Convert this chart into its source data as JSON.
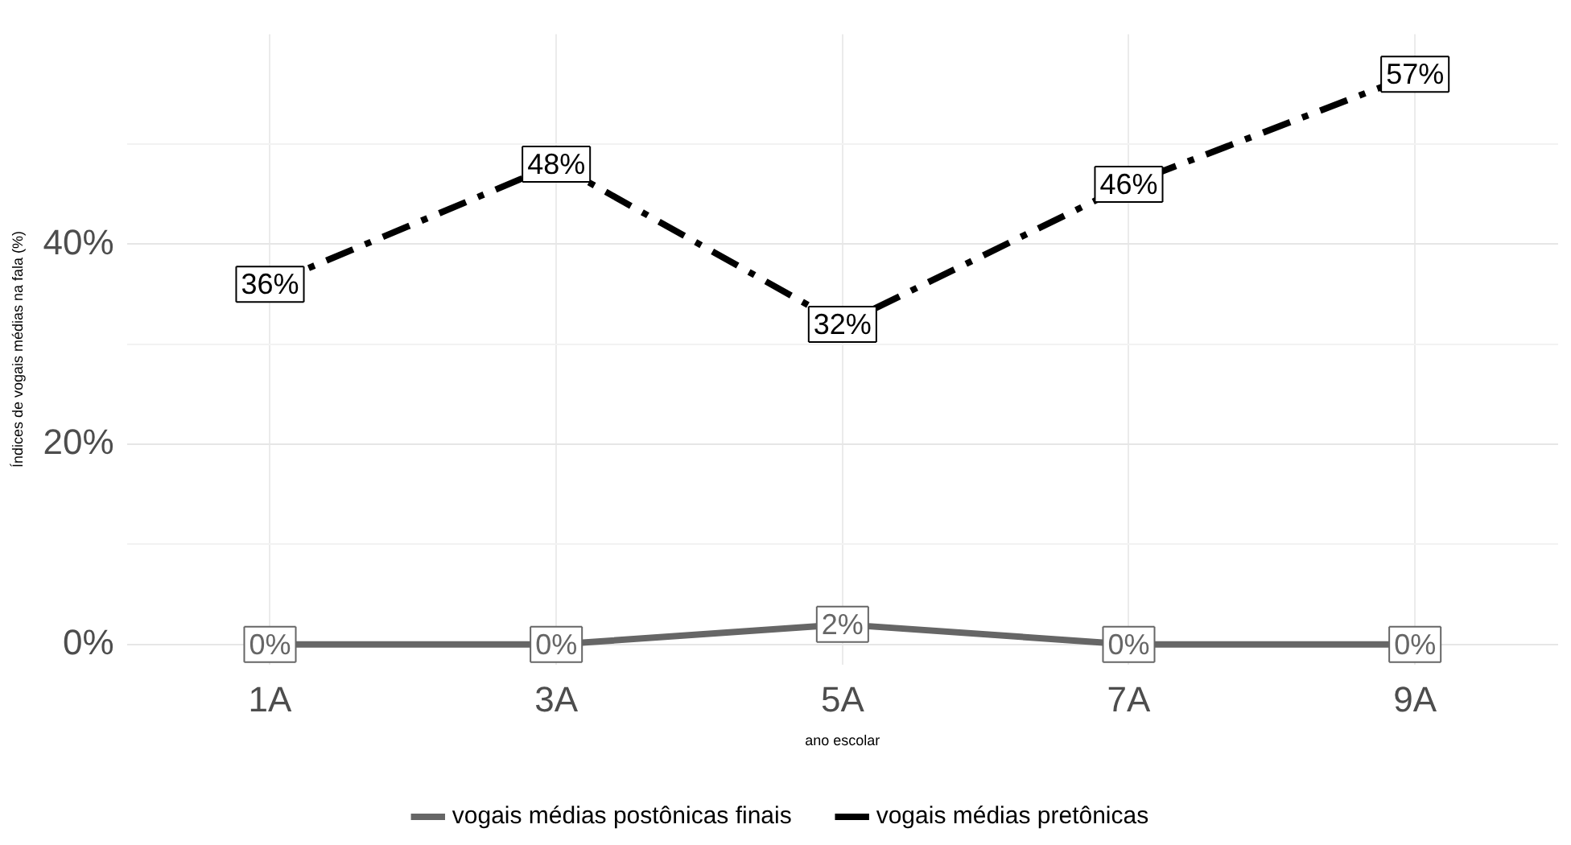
{
  "chart_data": {
    "type": "line",
    "xlabel": "ano escolar",
    "ylabel": "Índices de vogais médias na fala (%)",
    "categories": [
      "1A",
      "3A",
      "5A",
      "7A",
      "9A"
    ],
    "series": [
      {
        "name": "vogais médias postônicas finais",
        "color": "#666666",
        "values": [
          0,
          0,
          2,
          0,
          0
        ],
        "value_labels": [
          "0%",
          "0%",
          "2%",
          "0%",
          "0%"
        ],
        "line_style": "solid"
      },
      {
        "name": "vogais médias pretônicas",
        "color": "#000000",
        "values": [
          36,
          48,
          32,
          46,
          57
        ],
        "value_labels": [
          "36%",
          "48%",
          "32%",
          "46%",
          "57%"
        ],
        "line_style": "dashed"
      }
    ],
    "ylim": [
      -2,
      61
    ],
    "yticks": [
      {
        "value": 0,
        "label": "0%"
      },
      {
        "value": 10,
        "label": null
      },
      {
        "value": 20,
        "label": "20%"
      },
      {
        "value": 30,
        "label": null
      },
      {
        "value": 40,
        "label": "40%"
      },
      {
        "value": 50,
        "label": null
      }
    ],
    "grid": true,
    "legend": "bottom"
  }
}
